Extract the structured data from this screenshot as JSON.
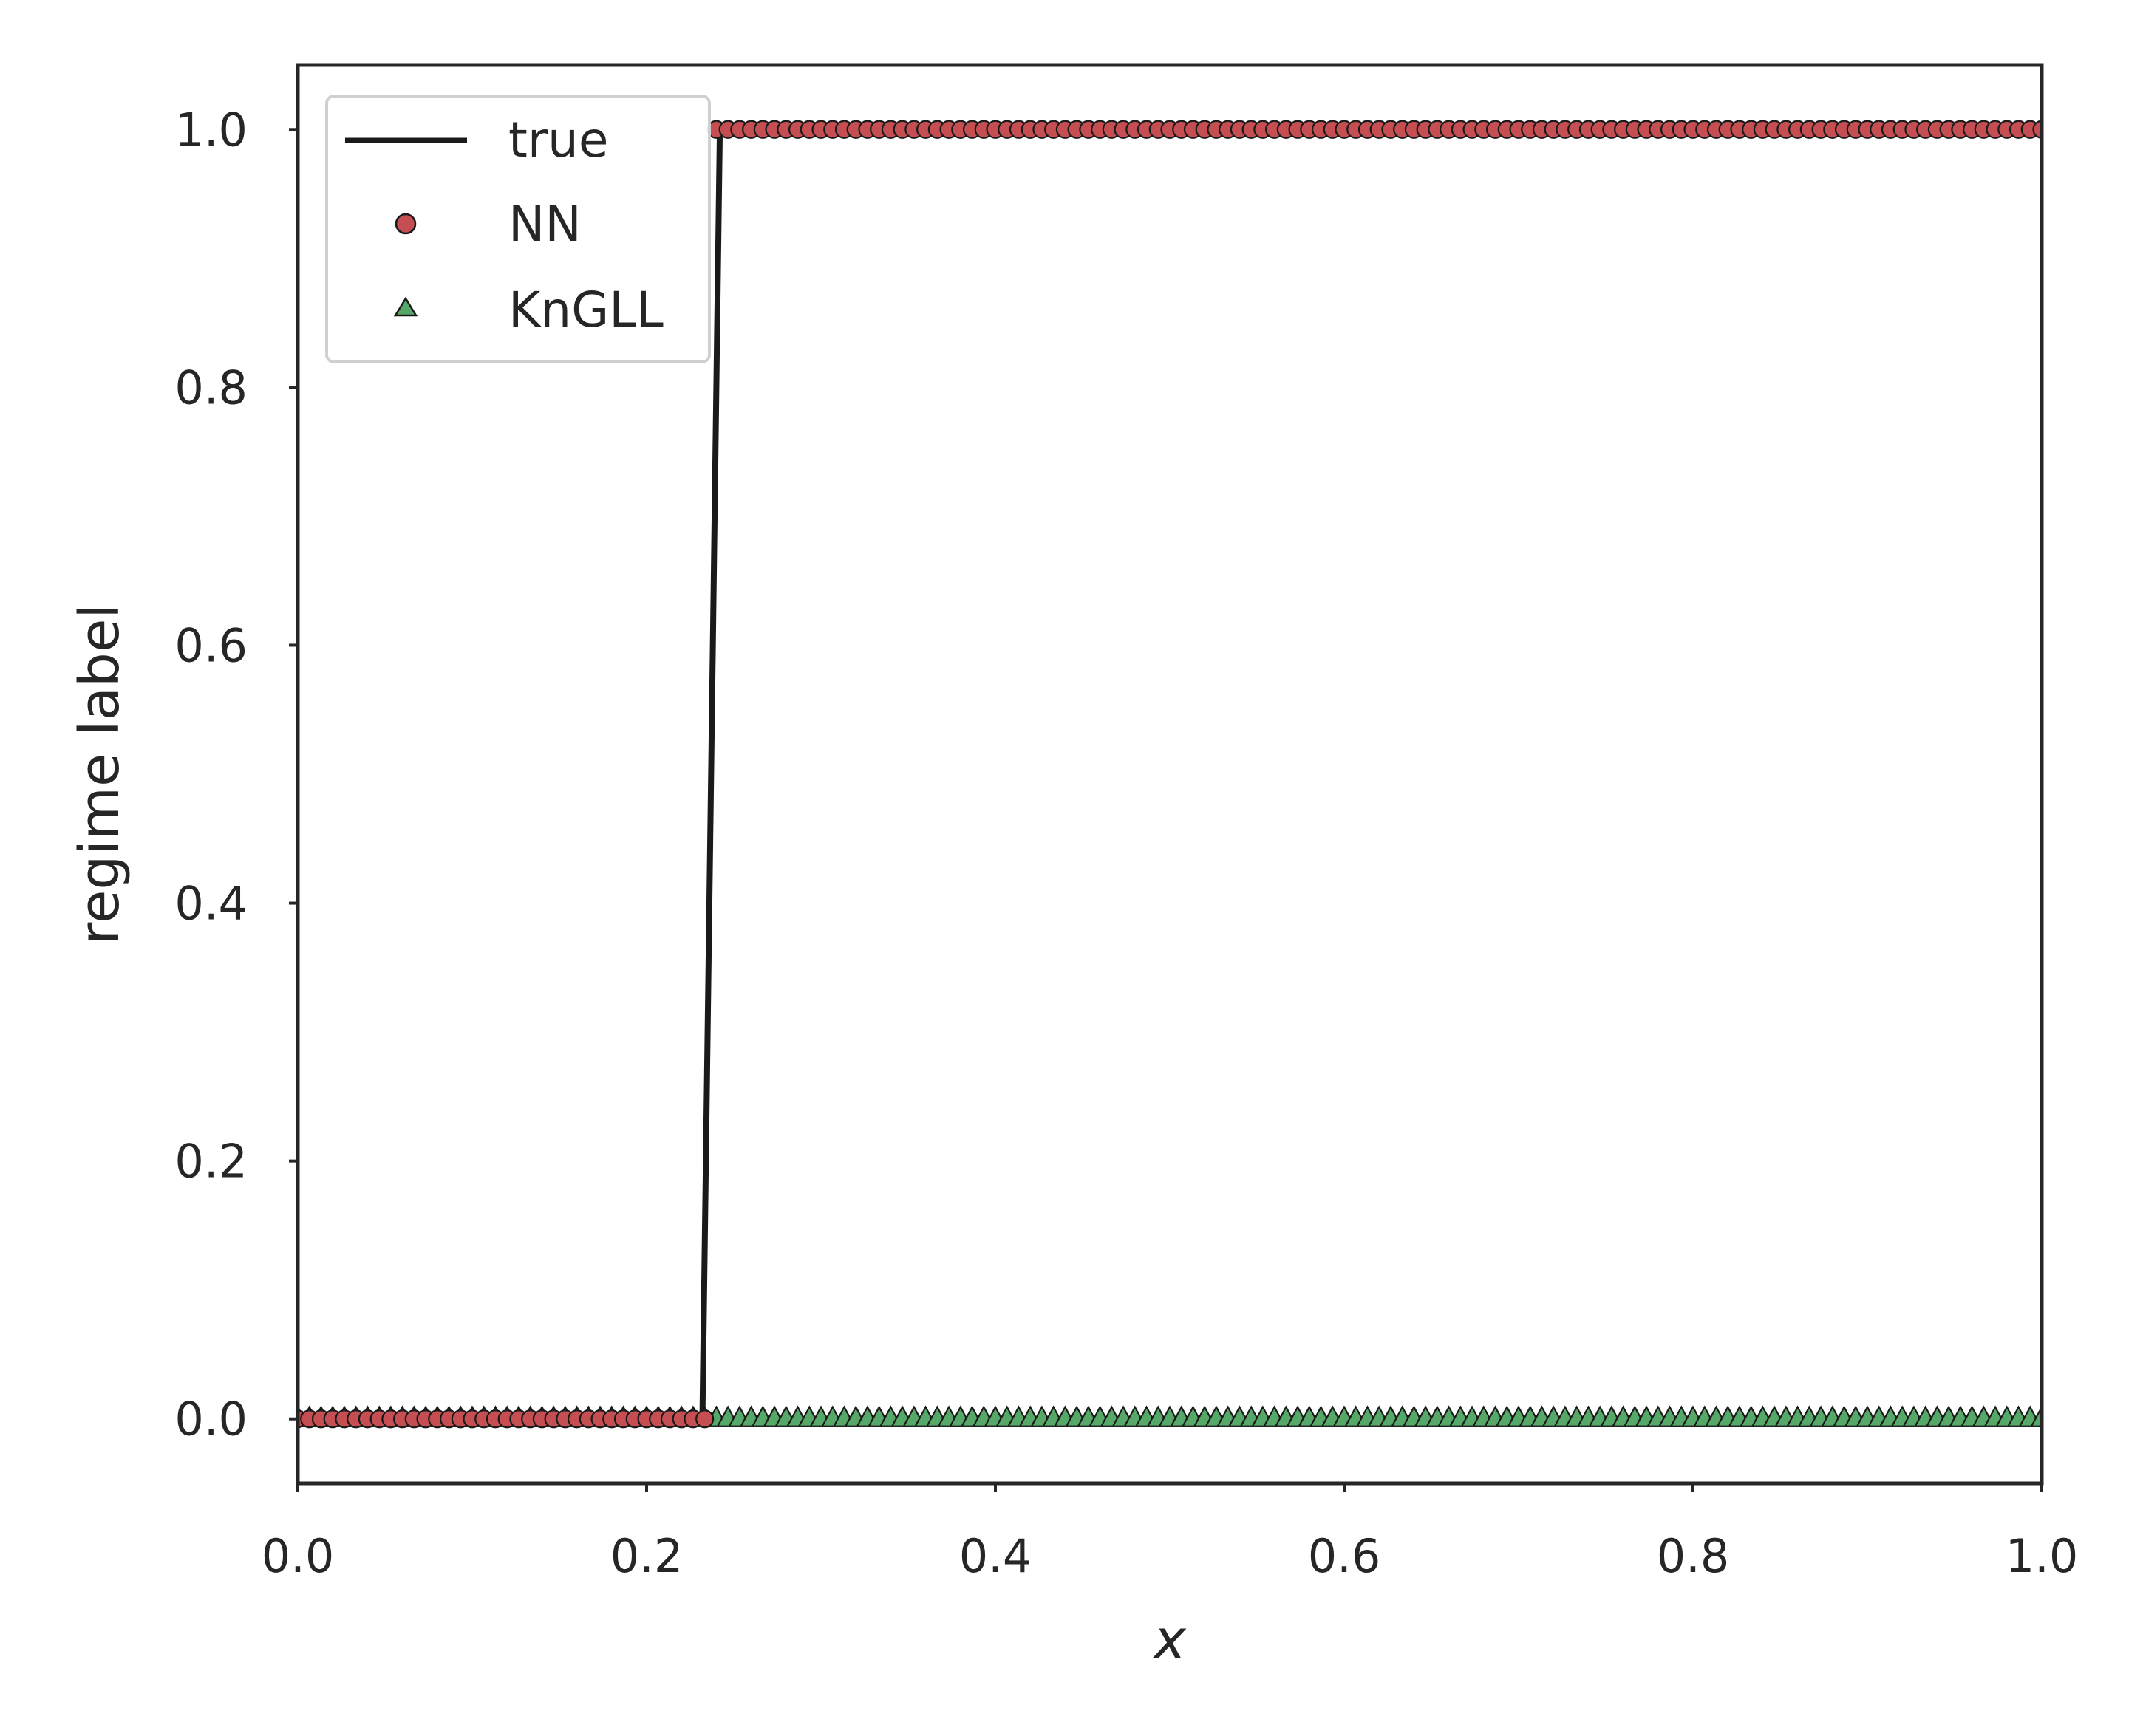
{
  "chart_data": {
    "type": "scatter",
    "xlabel": "x",
    "ylabel": "regime label",
    "xlim": [
      0.0,
      1.0
    ],
    "ylim": [
      -0.05,
      1.05
    ],
    "xticks": [
      "0.0",
      "0.2",
      "0.4",
      "0.6",
      "0.8",
      "1.0"
    ],
    "yticks": [
      "0.0",
      "0.2",
      "0.4",
      "0.6",
      "0.8",
      "1.0"
    ],
    "grid": false,
    "legend_position": "top-left",
    "series": [
      {
        "name": "true",
        "kind": "line",
        "color": "#1a1a1a",
        "x": [
          0.0,
          0.232,
          0.242,
          1.0
        ],
        "y": [
          0,
          0,
          1,
          1
        ]
      },
      {
        "name": "NN",
        "kind": "markers",
        "marker": "circle",
        "color": "#c44e52",
        "x_start": 0.0,
        "x_end": 1.0,
        "count": 151,
        "rule": "y = 0 for x < 0.237, y = 1 otherwise"
      },
      {
        "name": "KnGLL",
        "kind": "markers",
        "marker": "triangle",
        "color": "#55a868",
        "x_start": 0.0,
        "x_end": 1.0,
        "count": 151,
        "rule": "y = 0 for all x"
      }
    ]
  }
}
